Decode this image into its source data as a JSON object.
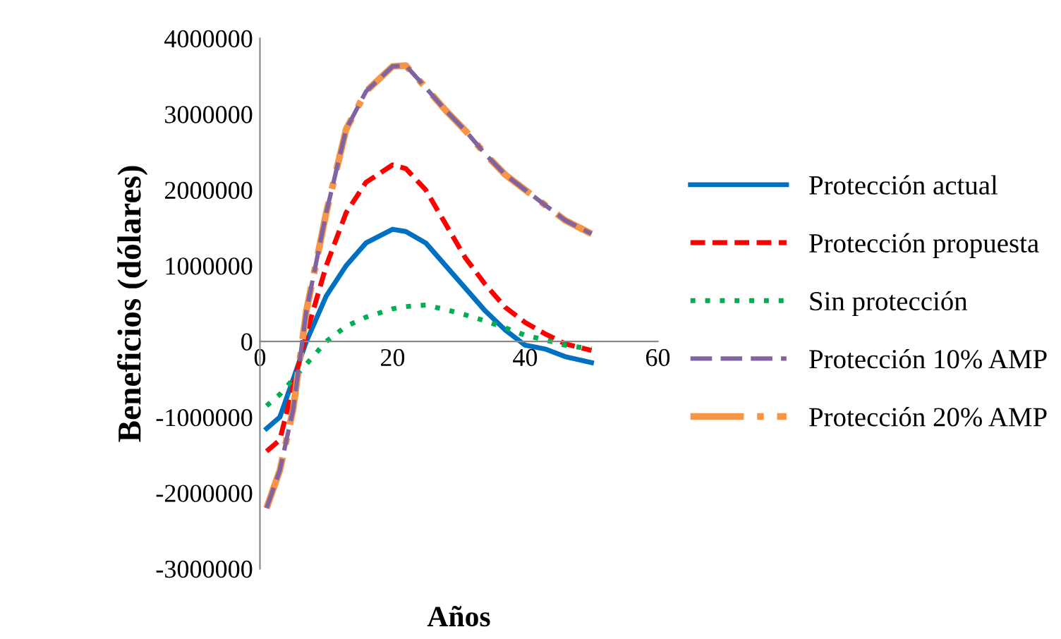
{
  "chart_data": {
    "type": "line",
    "xlabel": "Años",
    "ylabel": "Beneficios (dólares)",
    "xlim": [
      0,
      60
    ],
    "xticks": [
      0,
      20,
      40,
      60
    ],
    "ylim": [
      -3000000,
      4000000
    ],
    "yticks": [
      -3000000,
      -2000000,
      -1000000,
      0,
      1000000,
      2000000,
      3000000,
      4000000
    ],
    "grid": false,
    "legend": "right",
    "marker": "none",
    "x": [
      1,
      3,
      5,
      7,
      10,
      13,
      16,
      20,
      22,
      25,
      28,
      31,
      34,
      37,
      40,
      43,
      46,
      50
    ],
    "series": [
      {
        "name": "Protección actual",
        "color": "#0070c0",
        "line_style": "solid",
        "values": [
          -1150000,
          -1000000,
          -500000,
          0,
          600000,
          1000000,
          1300000,
          1480000,
          1450000,
          1300000,
          1000000,
          700000,
          400000,
          150000,
          -50000,
          -100000,
          -200000,
          -280000
        ]
      },
      {
        "name": "Protección propuesta",
        "color": "#ff0000",
        "line_style": "dashed",
        "values": [
          -1450000,
          -1300000,
          -600000,
          100000,
          1000000,
          1700000,
          2100000,
          2330000,
          2280000,
          2000000,
          1550000,
          1100000,
          750000,
          450000,
          250000,
          100000,
          -30000,
          -120000
        ]
      },
      {
        "name": "Sin protección",
        "color": "#00b050",
        "line_style": "dotted",
        "values": [
          -850000,
          -700000,
          -500000,
          -300000,
          0,
          200000,
          320000,
          430000,
          460000,
          480000,
          420000,
          350000,
          270000,
          180000,
          80000,
          20000,
          -50000,
          -100000
        ]
      },
      {
        "name": "Protección 10% AMP",
        "color": "#8064a2",
        "line_style": "longdash",
        "values": [
          -2200000,
          -1700000,
          -900000,
          400000,
          1700000,
          2800000,
          3300000,
          3630000,
          3640000,
          3350000,
          3050000,
          2780000,
          2470000,
          2200000,
          2000000,
          1800000,
          1600000,
          1420000
        ]
      },
      {
        "name": "Protección 20% AMP",
        "color": "#f79646",
        "line_style": "dashdot",
        "values": [
          -2200000,
          -1700000,
          -900000,
          400000,
          1700000,
          2800000,
          3300000,
          3630000,
          3640000,
          3350000,
          3050000,
          2780000,
          2470000,
          2200000,
          2000000,
          1800000,
          1600000,
          1420000
        ]
      }
    ]
  }
}
